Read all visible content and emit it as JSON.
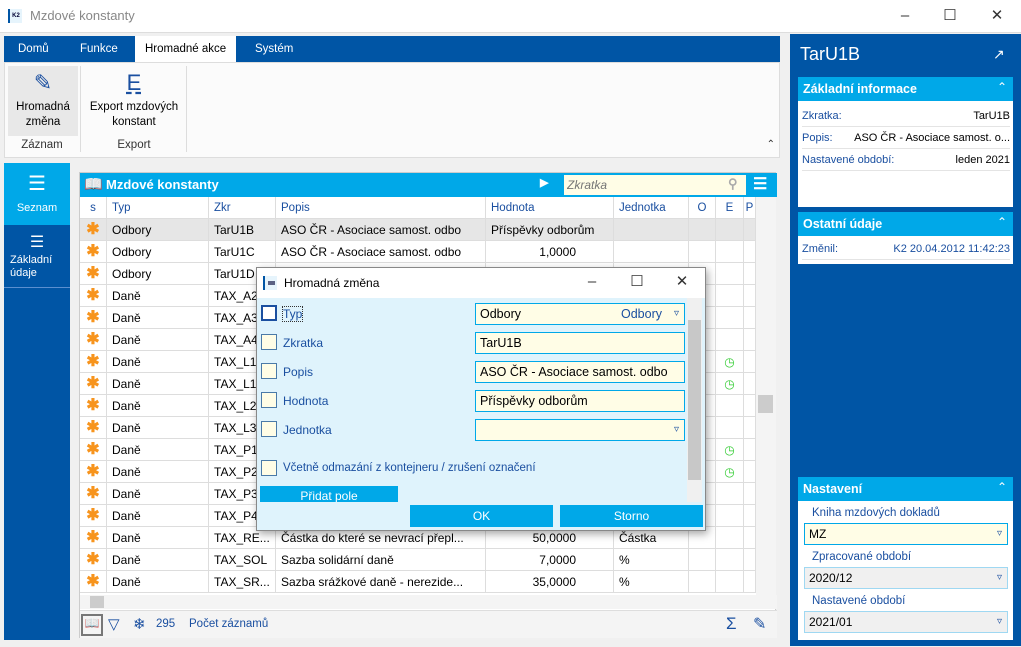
{
  "window": {
    "title": "Mzdové konstanty",
    "logo": "K2"
  },
  "ribbon": {
    "tabs": [
      "Domů",
      "Funkce",
      "Hromadné akce",
      "Systém"
    ],
    "active_tab": "Hromadné akce",
    "buttons": [
      {
        "label1": "Hromadná",
        "label2": "změna",
        "icon": "pencil-icon",
        "group": "Záznam"
      },
      {
        "label1": "Export mzdových",
        "label2": "konstant",
        "icon": "export-icon",
        "group": "Export",
        "glyph": "E"
      }
    ]
  },
  "nav": [
    {
      "label": "Seznam",
      "icon": "hamburger-icon"
    },
    {
      "label": "Základní údaje",
      "icon": "list-icon"
    }
  ],
  "grid": {
    "title": "Mzdové konstanty",
    "search_placeholder": "Zkratka",
    "columns": [
      "s",
      "Typ",
      "Zkr",
      "Popis",
      "Hodnota",
      "Jednotka",
      "O",
      "E",
      "P"
    ],
    "rows": [
      {
        "typ": "Odbory",
        "zkr": "TarU1B",
        "popis": "ASO ČR - Asociace samost. odbo",
        "hodnota": "Příspěvky odborům",
        "jednotka": "",
        "e": false
      },
      {
        "typ": "Odbory",
        "zkr": "TarU1C",
        "popis": "ASO ČR - Asociace samost. odbo",
        "hodnota": "1,0000",
        "jednotka": "",
        "e": false
      },
      {
        "typ": "Odbory",
        "zkr": "TarU1D",
        "popis": "",
        "hodnota": "",
        "jednotka": "",
        "e": false
      },
      {
        "typ": "Daně",
        "zkr": "TAX_A2",
        "popis": "",
        "hodnota": "",
        "jednotka": "",
        "e": false
      },
      {
        "typ": "Daně",
        "zkr": "TAX_A3",
        "popis": "",
        "hodnota": "",
        "jednotka": "",
        "e": false
      },
      {
        "typ": "Daně",
        "zkr": "TAX_A4",
        "popis": "",
        "hodnota": "",
        "jednotka": "",
        "e": false
      },
      {
        "typ": "Daně",
        "zkr": "TAX_L1",
        "popis": "",
        "hodnota": "",
        "jednotka": "",
        "e": true
      },
      {
        "typ": "Daně",
        "zkr": "TAX_L1",
        "popis": "",
        "hodnota": "",
        "jednotka": "",
        "e": true
      },
      {
        "typ": "Daně",
        "zkr": "TAX_L2",
        "popis": "",
        "hodnota": "",
        "jednotka": "",
        "e": false
      },
      {
        "typ": "Daně",
        "zkr": "TAX_L3",
        "popis": "",
        "hodnota": "",
        "jednotka": "",
        "e": false
      },
      {
        "typ": "Daně",
        "zkr": "TAX_P1",
        "popis": "",
        "hodnota": "",
        "jednotka": "",
        "e": true
      },
      {
        "typ": "Daně",
        "zkr": "TAX_P2",
        "popis": "",
        "hodnota": "",
        "jednotka": "",
        "e": true
      },
      {
        "typ": "Daně",
        "zkr": "TAX_P3",
        "popis": "",
        "hodnota": "",
        "jednotka": "",
        "e": false
      },
      {
        "typ": "Daně",
        "zkr": "TAX_P4",
        "popis": "",
        "hodnota": "",
        "jednotka": "",
        "e": false
      },
      {
        "typ": "Daně",
        "zkr": "TAX_RE...",
        "popis": "Částka do které se nevrací přepl...",
        "hodnota": "50,0000",
        "jednotka": "Částka",
        "e": false
      },
      {
        "typ": "Daně",
        "zkr": "TAX_SOL",
        "popis": "Sazba solidární daně",
        "hodnota": "7,0000",
        "jednotka": "%",
        "e": false
      },
      {
        "typ": "Daně",
        "zkr": "TAX_SR...",
        "popis": "Sazba srážkové daně - nerezide...",
        "hodnota": "35,0000",
        "jednotka": "%",
        "e": false
      }
    ],
    "footer": {
      "count": "295",
      "count_label": "Počet záznamů"
    }
  },
  "dialog": {
    "title": "Hromadná změna",
    "fields": [
      {
        "label": "Typ",
        "value": "Odbory",
        "extra": "Odbory",
        "dropdown": true
      },
      {
        "label": "Zkratka",
        "value": "TarU1B"
      },
      {
        "label": "Popis",
        "value": "ASO ČR - Asociace samost. odbo"
      },
      {
        "label": "Hodnota",
        "value": "Příspěvky odborům"
      },
      {
        "label": "Jednotka",
        "value": "",
        "dropdown": true
      }
    ],
    "include_label": "Včetně odmazání z kontejneru / zrušení označení",
    "add_field": "Přidat pole",
    "ok": "OK",
    "cancel": "Storno"
  },
  "detail": {
    "title": "TarU1B",
    "basic": {
      "header": "Základní informace",
      "items": [
        {
          "k": "Zkratka:",
          "v": "TarU1B"
        },
        {
          "k": "Popis:",
          "v": "ASO ČR - Asociace samost. o..."
        },
        {
          "k": "Nastavené období:",
          "v": "leden 2021"
        }
      ]
    },
    "other": {
      "header": "Ostatní údaje",
      "items": [
        {
          "k": "Změnil:",
          "v": "K2 20.04.2012 11:42:23"
        }
      ]
    },
    "settings": {
      "header": "Nastavení",
      "fields": [
        {
          "label": "Kniha mzdových dokladů",
          "value": "MZ"
        },
        {
          "label": "Zpracované období",
          "value": "2020/12"
        },
        {
          "label": "Nastavené období",
          "value": "2021/01"
        }
      ]
    }
  },
  "colors": {
    "dark_blue": "#0055a5",
    "accent": "#00a8e8",
    "star": "#f7941d",
    "input_bg": "#fffde6"
  }
}
